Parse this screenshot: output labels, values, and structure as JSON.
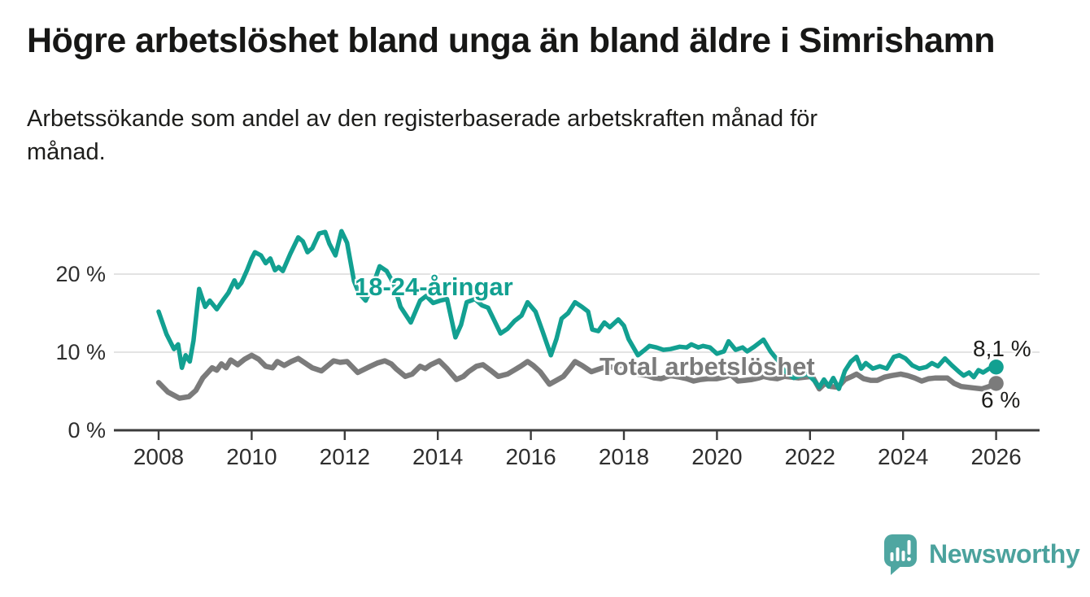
{
  "header": {
    "title": "Högre arbetslöshet bland unga än bland äldre i Simrishamn",
    "subtitle_lines": [
      "Arbetssökande som andel av den registerbaserade arbetskraften månad för",
      "månad."
    ]
  },
  "footer": {
    "logo_text": "Newsworthy",
    "logo_icon": "speech-bubble-bar-chart-icon"
  },
  "colors": {
    "accent_teal": "#12a091",
    "total_gray": "#7b7b7b",
    "logo_teal": "#4fa6a1",
    "grid": "#dadada",
    "axis": "#3b3b3b",
    "text": "#1d1d1b"
  },
  "chart_data": {
    "type": "line",
    "unit": "%",
    "x_axis": {
      "ticks": [
        2008,
        2010,
        2012,
        2014,
        2016,
        2018,
        2020,
        2022,
        2024,
        2026
      ],
      "range": [
        2007.0,
        2026.95
      ]
    },
    "y_axis": {
      "ticks": [
        {
          "value": 0,
          "label": "0 %"
        },
        {
          "value": 10,
          "label": "10 %"
        },
        {
          "value": 20,
          "label": "20 %"
        }
      ],
      "gridline_values": [
        10,
        20
      ],
      "range": [
        0,
        26.5
      ]
    },
    "legend_position": "inline-labels",
    "series": [
      {
        "name": "18-24-åringar",
        "color": "#12a091",
        "end_label": "8,1 %",
        "end_value": 8.1,
        "points": [
          [
            2008.0,
            15.2
          ],
          [
            2008.17,
            12.3
          ],
          [
            2008.33,
            10.4
          ],
          [
            2008.42,
            11.0
          ],
          [
            2008.5,
            8.0
          ],
          [
            2008.58,
            9.6
          ],
          [
            2008.67,
            8.8
          ],
          [
            2008.75,
            11.5
          ],
          [
            2008.87,
            18.1
          ],
          [
            2009.0,
            15.8
          ],
          [
            2009.1,
            16.6
          ],
          [
            2009.25,
            15.5
          ],
          [
            2009.4,
            16.8
          ],
          [
            2009.5,
            17.6
          ],
          [
            2009.63,
            19.2
          ],
          [
            2009.7,
            18.3
          ],
          [
            2009.78,
            18.9
          ],
          [
            2009.9,
            20.5
          ],
          [
            2010.0,
            22.0
          ],
          [
            2010.07,
            22.8
          ],
          [
            2010.2,
            22.4
          ],
          [
            2010.3,
            21.4
          ],
          [
            2010.4,
            22.0
          ],
          [
            2010.5,
            20.5
          ],
          [
            2010.58,
            20.9
          ],
          [
            2010.67,
            20.4
          ],
          [
            2010.83,
            22.6
          ],
          [
            2011.0,
            24.7
          ],
          [
            2011.1,
            24.2
          ],
          [
            2011.2,
            22.8
          ],
          [
            2011.3,
            23.3
          ],
          [
            2011.45,
            25.2
          ],
          [
            2011.58,
            25.4
          ],
          [
            2011.67,
            23.9
          ],
          [
            2011.8,
            22.4
          ],
          [
            2011.93,
            25.5
          ],
          [
            2012.05,
            24.0
          ],
          [
            2012.2,
            19.1
          ],
          [
            2012.3,
            17.6
          ],
          [
            2012.45,
            16.6
          ],
          [
            2012.6,
            18.5
          ],
          [
            2012.75,
            21.0
          ],
          [
            2012.9,
            20.4
          ],
          [
            2013.05,
            18.8
          ],
          [
            2013.2,
            15.8
          ],
          [
            2013.42,
            13.8
          ],
          [
            2013.62,
            16.6
          ],
          [
            2013.75,
            17.2
          ],
          [
            2013.9,
            16.3
          ],
          [
            2014.05,
            16.6
          ],
          [
            2014.2,
            16.8
          ],
          [
            2014.38,
            11.9
          ],
          [
            2014.5,
            13.5
          ],
          [
            2014.62,
            16.4
          ],
          [
            2014.8,
            16.8
          ],
          [
            2014.95,
            16.0
          ],
          [
            2015.08,
            15.7
          ],
          [
            2015.35,
            12.4
          ],
          [
            2015.5,
            13.0
          ],
          [
            2015.65,
            14.0
          ],
          [
            2015.8,
            14.7
          ],
          [
            2015.93,
            16.4
          ],
          [
            2016.1,
            15.2
          ],
          [
            2016.25,
            12.7
          ],
          [
            2016.43,
            9.6
          ],
          [
            2016.55,
            11.7
          ],
          [
            2016.66,
            14.3
          ],
          [
            2016.8,
            15.0
          ],
          [
            2016.95,
            16.4
          ],
          [
            2017.1,
            15.8
          ],
          [
            2017.23,
            15.2
          ],
          [
            2017.32,
            12.9
          ],
          [
            2017.45,
            12.7
          ],
          [
            2017.58,
            13.8
          ],
          [
            2017.7,
            13.2
          ],
          [
            2017.88,
            14.2
          ],
          [
            2018.0,
            13.4
          ],
          [
            2018.1,
            11.7
          ],
          [
            2018.3,
            9.6
          ],
          [
            2018.45,
            10.3
          ],
          [
            2018.55,
            10.8
          ],
          [
            2018.7,
            10.6
          ],
          [
            2018.85,
            10.3
          ],
          [
            2019.0,
            10.4
          ],
          [
            2019.2,
            10.7
          ],
          [
            2019.35,
            10.6
          ],
          [
            2019.45,
            11.0
          ],
          [
            2019.6,
            10.6
          ],
          [
            2019.7,
            10.8
          ],
          [
            2019.85,
            10.6
          ],
          [
            2020.0,
            9.8
          ],
          [
            2020.15,
            10.1
          ],
          [
            2020.25,
            11.4
          ],
          [
            2020.4,
            10.3
          ],
          [
            2020.55,
            10.6
          ],
          [
            2020.65,
            10.1
          ],
          [
            2020.8,
            10.7
          ],
          [
            2021.0,
            11.6
          ],
          [
            2021.15,
            10.1
          ],
          [
            2021.3,
            9.0
          ],
          [
            2021.45,
            7.6
          ],
          [
            2021.55,
            7.2
          ],
          [
            2021.65,
            6.7
          ],
          [
            2021.8,
            7.0
          ],
          [
            2021.95,
            7.2
          ],
          [
            2022.1,
            6.3
          ],
          [
            2022.2,
            5.5
          ],
          [
            2022.3,
            6.5
          ],
          [
            2022.4,
            5.6
          ],
          [
            2022.5,
            6.7
          ],
          [
            2022.62,
            5.3
          ],
          [
            2022.75,
            7.6
          ],
          [
            2022.88,
            8.8
          ],
          [
            2023.0,
            9.4
          ],
          [
            2023.1,
            7.9
          ],
          [
            2023.2,
            8.6
          ],
          [
            2023.35,
            7.9
          ],
          [
            2023.5,
            8.2
          ],
          [
            2023.65,
            7.9
          ],
          [
            2023.8,
            9.4
          ],
          [
            2023.92,
            9.6
          ],
          [
            2024.05,
            9.2
          ],
          [
            2024.2,
            8.3
          ],
          [
            2024.35,
            7.9
          ],
          [
            2024.5,
            8.1
          ],
          [
            2024.62,
            8.6
          ],
          [
            2024.75,
            8.2
          ],
          [
            2024.9,
            9.2
          ],
          [
            2025.05,
            8.3
          ],
          [
            2025.2,
            7.5
          ],
          [
            2025.3,
            7.0
          ],
          [
            2025.42,
            7.4
          ],
          [
            2025.52,
            6.8
          ],
          [
            2025.62,
            7.7
          ],
          [
            2025.72,
            7.4
          ],
          [
            2025.85,
            7.9
          ],
          [
            2026.0,
            8.1
          ]
        ]
      },
      {
        "name": "Total arbetslöshet",
        "color": "#7b7b7b",
        "end_label": "6 %",
        "end_value": 6.0,
        "points": [
          [
            2008.0,
            6.1
          ],
          [
            2008.2,
            4.9
          ],
          [
            2008.45,
            4.1
          ],
          [
            2008.65,
            4.3
          ],
          [
            2008.8,
            5.1
          ],
          [
            2008.95,
            6.7
          ],
          [
            2009.15,
            8.0
          ],
          [
            2009.25,
            7.7
          ],
          [
            2009.35,
            8.5
          ],
          [
            2009.45,
            8.0
          ],
          [
            2009.55,
            9.0
          ],
          [
            2009.7,
            8.4
          ],
          [
            2009.85,
            9.1
          ],
          [
            2010.0,
            9.6
          ],
          [
            2010.15,
            9.1
          ],
          [
            2010.3,
            8.2
          ],
          [
            2010.45,
            8.0
          ],
          [
            2010.55,
            8.8
          ],
          [
            2010.7,
            8.3
          ],
          [
            2010.85,
            8.8
          ],
          [
            2011.0,
            9.2
          ],
          [
            2011.15,
            8.6
          ],
          [
            2011.3,
            8.0
          ],
          [
            2011.5,
            7.6
          ],
          [
            2011.62,
            8.2
          ],
          [
            2011.76,
            8.9
          ],
          [
            2011.9,
            8.7
          ],
          [
            2012.05,
            8.8
          ],
          [
            2012.28,
            7.4
          ],
          [
            2012.55,
            8.2
          ],
          [
            2012.7,
            8.6
          ],
          [
            2012.86,
            8.9
          ],
          [
            2013.0,
            8.5
          ],
          [
            2013.1,
            7.9
          ],
          [
            2013.3,
            6.9
          ],
          [
            2013.45,
            7.2
          ],
          [
            2013.62,
            8.2
          ],
          [
            2013.73,
            7.9
          ],
          [
            2013.85,
            8.4
          ],
          [
            2014.03,
            8.9
          ],
          [
            2014.2,
            7.9
          ],
          [
            2014.4,
            6.5
          ],
          [
            2014.55,
            6.9
          ],
          [
            2014.66,
            7.5
          ],
          [
            2014.83,
            8.2
          ],
          [
            2014.97,
            8.4
          ],
          [
            2015.13,
            7.7
          ],
          [
            2015.3,
            6.9
          ],
          [
            2015.5,
            7.2
          ],
          [
            2015.64,
            7.7
          ],
          [
            2015.78,
            8.2
          ],
          [
            2015.93,
            8.8
          ],
          [
            2016.05,
            8.3
          ],
          [
            2016.2,
            7.5
          ],
          [
            2016.4,
            5.9
          ],
          [
            2016.55,
            6.4
          ],
          [
            2016.7,
            6.9
          ],
          [
            2016.85,
            8.0
          ],
          [
            2016.95,
            8.8
          ],
          [
            2017.1,
            8.3
          ],
          [
            2017.3,
            7.5
          ],
          [
            2017.45,
            7.8
          ],
          [
            2017.65,
            8.2
          ],
          [
            2017.8,
            8.0
          ],
          [
            2017.95,
            8.4
          ],
          [
            2018.15,
            7.6
          ],
          [
            2018.3,
            7.2
          ],
          [
            2018.5,
            7.0
          ],
          [
            2018.65,
            6.7
          ],
          [
            2018.8,
            6.6
          ],
          [
            2019.0,
            7.0
          ],
          [
            2019.2,
            6.8
          ],
          [
            2019.35,
            6.6
          ],
          [
            2019.5,
            6.3
          ],
          [
            2019.65,
            6.5
          ],
          [
            2019.8,
            6.6
          ],
          [
            2020.0,
            6.6
          ],
          [
            2020.15,
            6.8
          ],
          [
            2020.3,
            7.1
          ],
          [
            2020.45,
            6.3
          ],
          [
            2020.6,
            6.4
          ],
          [
            2020.75,
            6.5
          ],
          [
            2020.9,
            6.7
          ],
          [
            2021.0,
            6.9
          ],
          [
            2021.15,
            6.7
          ],
          [
            2021.3,
            6.6
          ],
          [
            2021.45,
            6.9
          ],
          [
            2021.6,
            6.8
          ],
          [
            2021.75,
            6.7
          ],
          [
            2021.9,
            6.8
          ],
          [
            2022.05,
            6.9
          ],
          [
            2022.2,
            5.3
          ],
          [
            2022.32,
            6.0
          ],
          [
            2022.45,
            5.6
          ],
          [
            2022.6,
            5.5
          ],
          [
            2022.75,
            6.5
          ],
          [
            2022.9,
            6.9
          ],
          [
            2023.0,
            7.2
          ],
          [
            2023.15,
            6.6
          ],
          [
            2023.3,
            6.4
          ],
          [
            2023.45,
            6.4
          ],
          [
            2023.6,
            6.8
          ],
          [
            2023.75,
            7.0
          ],
          [
            2023.95,
            7.2
          ],
          [
            2024.1,
            7.0
          ],
          [
            2024.25,
            6.7
          ],
          [
            2024.4,
            6.3
          ],
          [
            2024.55,
            6.6
          ],
          [
            2024.7,
            6.7
          ],
          [
            2024.85,
            6.7
          ],
          [
            2024.95,
            6.7
          ],
          [
            2025.1,
            6.0
          ],
          [
            2025.25,
            5.6
          ],
          [
            2025.4,
            5.5
          ],
          [
            2025.55,
            5.4
          ],
          [
            2025.7,
            5.3
          ],
          [
            2025.85,
            5.6
          ],
          [
            2026.0,
            6.0
          ]
        ]
      }
    ]
  }
}
